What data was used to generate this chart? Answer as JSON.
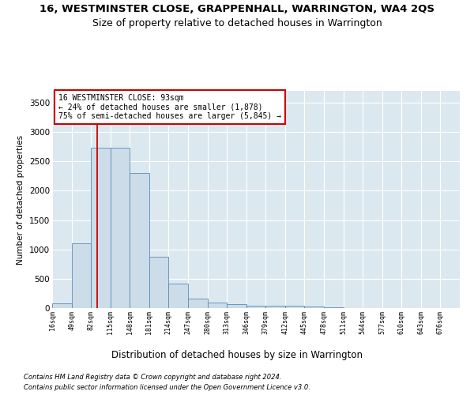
{
  "title": "16, WESTMINSTER CLOSE, GRAPPENHALL, WARRINGTON, WA4 2QS",
  "subtitle": "Size of property relative to detached houses in Warrington",
  "xlabel": "Distribution of detached houses by size in Warrington",
  "ylabel": "Number of detached properties",
  "bin_edges": [
    16,
    49,
    82,
    115,
    148,
    181,
    214,
    247,
    280,
    313,
    346,
    379,
    412,
    445,
    478,
    511,
    544,
    577,
    610,
    643,
    676
  ],
  "bar_heights": [
    75,
    1100,
    2725,
    2725,
    2300,
    875,
    415,
    160,
    95,
    65,
    40,
    35,
    35,
    30,
    10,
    5,
    3,
    2,
    1,
    0
  ],
  "bar_facecolor": "#ccdce8",
  "bar_edgecolor": "#5b8ab8",
  "property_size": 93,
  "vline_color": "#cc0000",
  "annotation_line1": "16 WESTMINSTER CLOSE: 93sqm",
  "annotation_line2": "← 24% of detached houses are smaller (1,878)",
  "annotation_line3": "75% of semi-detached houses are larger (5,845) →",
  "annotation_box_edgecolor": "#cc0000",
  "annotation_box_facecolor": "#ffffff",
  "ylim": [
    0,
    3700
  ],
  "yticks": [
    0,
    500,
    1000,
    1500,
    2000,
    2500,
    3000,
    3500
  ],
  "background_color": "#dce8f0",
  "grid_color": "#ffffff",
  "footnote1": "Contains HM Land Registry data © Crown copyright and database right 2024.",
  "footnote2": "Contains public sector information licensed under the Open Government Licence v3.0.",
  "title_fontsize": 9.5,
  "subtitle_fontsize": 9,
  "xlabel_fontsize": 8.5,
  "ylabel_fontsize": 7.5,
  "tick_labelsize": 6,
  "annot_fontsize": 7,
  "footnote_fontsize": 6
}
